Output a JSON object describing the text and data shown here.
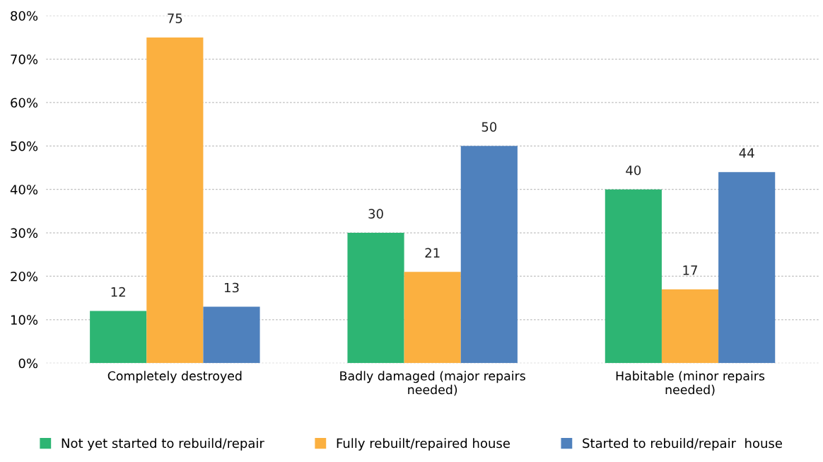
{
  "chart_data": {
    "type": "bar",
    "categories": [
      "Completely destroyed",
      "Badly damaged (major repairs\nneeded)",
      "Habitable (minor repairs\nneeded)"
    ],
    "series": [
      {
        "name": "Not yet started to rebuild/repair",
        "color": "#2db573",
        "values": [
          12,
          30,
          40
        ]
      },
      {
        "name": "Fully rebuilt/repaired house",
        "color": "#fbb040",
        "values": [
          75,
          21,
          17
        ]
      },
      {
        "name": "Started to rebuild/repair  house",
        "color": "#4f81bd",
        "values": [
          13,
          50,
          44
        ]
      }
    ],
    "ylim": [
      0,
      80
    ],
    "yticks": [
      {
        "value": 0,
        "label": "0%"
      },
      {
        "value": 10,
        "label": "10%"
      },
      {
        "value": 20,
        "label": "20%"
      },
      {
        "value": 30,
        "label": "30%"
      },
      {
        "value": 40,
        "label": "40%"
      },
      {
        "value": 50,
        "label": "50%"
      },
      {
        "value": 60,
        "label": "60%"
      },
      {
        "value": 70,
        "label": "70%"
      },
      {
        "value": 80,
        "label": "80%"
      }
    ],
    "grid": "y",
    "legend": "bottom",
    "data_labels": true
  }
}
